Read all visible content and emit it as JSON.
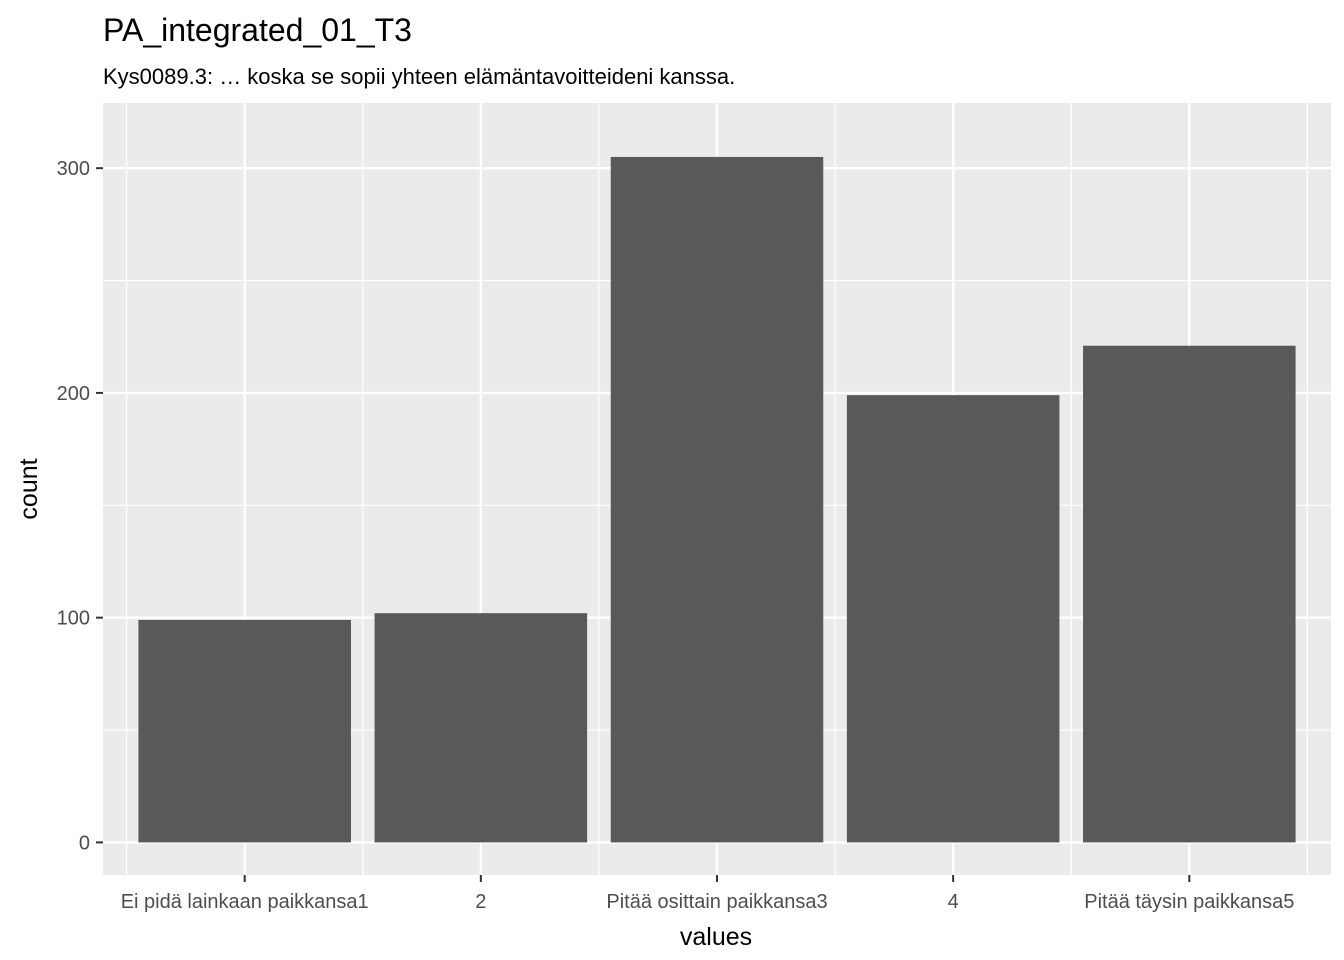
{
  "chart_data": {
    "type": "bar",
    "title": "PA_integrated_01_T3",
    "subtitle": "Kys0089.3: … koska se sopii yhteen elämäntavoitteideni kanssa.",
    "xlabel": "values",
    "ylabel": "count",
    "categories": [
      "Ei pidä lainkaan paikkansa1",
      "2",
      "Pitää osittain paikkansa3",
      "4",
      "Pitää täysin paikkansa5"
    ],
    "values": [
      99,
      102,
      305,
      199,
      221
    ],
    "ylim": [
      -14.5,
      329
    ],
    "yticks": [
      0,
      100,
      200,
      300
    ],
    "grid": true,
    "legend": "none",
    "colors": {
      "bar": "#595959",
      "panel": "#ebebeb",
      "grid": "#ffffff"
    }
  }
}
